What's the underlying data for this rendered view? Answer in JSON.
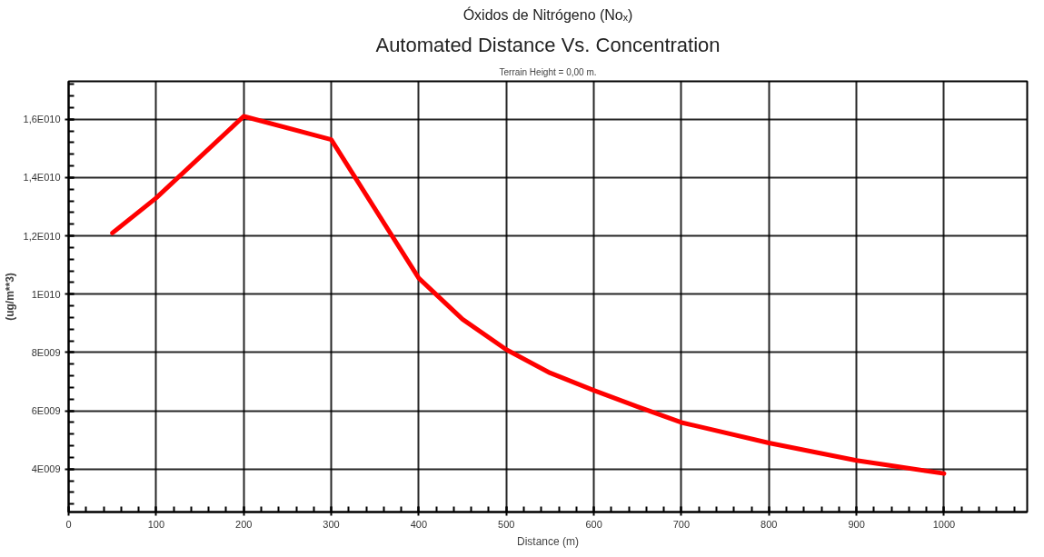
{
  "chart_data": {
    "type": "line",
    "title": "Automated Distance Vs. Concentration",
    "subtitle": "Terrain Height = 0,00 m.",
    "annotations": [
      "Óxidos de Nitrógeno (Noₓ)"
    ],
    "xlabel": "Distance (m)",
    "ylabel": "(ug/m**3)",
    "x": [
      50,
      100,
      200,
      300,
      400,
      450,
      500,
      550,
      600,
      650,
      700,
      800,
      900,
      1000
    ],
    "series": [
      {
        "color": "#ff0000",
        "values": [
          12100000000,
          13300000000,
          16100000000,
          15300000000,
          10550000000,
          9140000000,
          8100000000,
          7300000000,
          6700000000,
          6140000000,
          5600000000,
          4900000000,
          4300000000,
          3850000000
        ]
      }
    ],
    "xlim": [
      0,
      1095
    ],
    "ylim": [
      2530000000,
      17300000000
    ],
    "xticks": [
      0,
      100,
      200,
      300,
      400,
      500,
      600,
      700,
      800,
      900,
      1000
    ],
    "yticks": [
      {
        "value": 4000000000,
        "label": "4E009"
      },
      {
        "value": 6000000000,
        "label": "6E009"
      },
      {
        "value": 8000000000,
        "label": "8E009"
      },
      {
        "value": 10000000000,
        "label": "1E010"
      },
      {
        "value": 12000000000,
        "label": "1,2E010"
      },
      {
        "value": 14000000000,
        "label": "1,4E010"
      },
      {
        "value": 16000000000,
        "label": "1,6E010"
      }
    ],
    "grid": true,
    "line_style": "solid"
  }
}
